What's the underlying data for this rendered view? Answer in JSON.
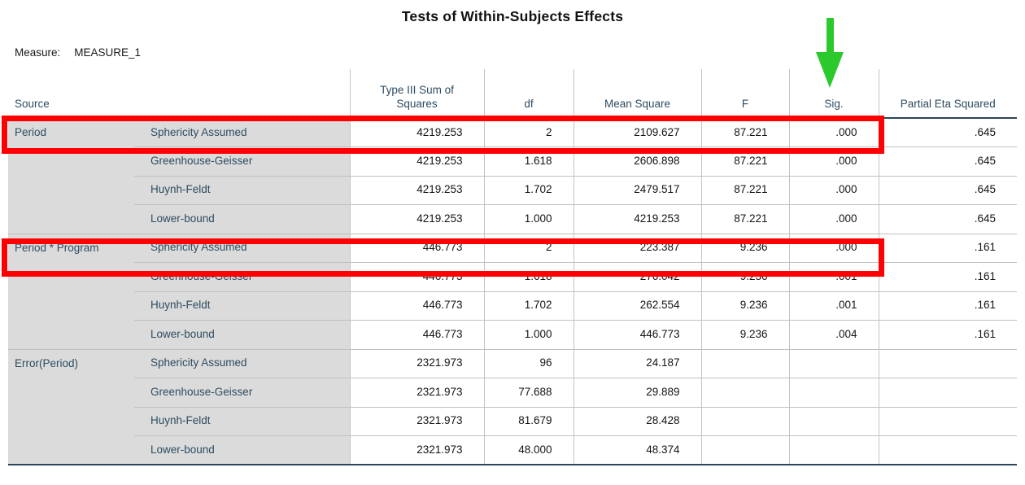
{
  "title": "Tests of Within-Subjects Effects",
  "measure": {
    "label": "Measure:",
    "value": "MEASURE_1"
  },
  "columns": {
    "source": "Source",
    "ss": "Type III Sum of Squares",
    "df": "df",
    "ms": "Mean Square",
    "f": "F",
    "sig": "Sig.",
    "eta": "Partial Eta Squared"
  },
  "table": {
    "blocks": [
      {
        "source": "Period",
        "rows": [
          {
            "correction": "Sphericity Assumed",
            "ss": "4219.253",
            "df": "2",
            "ms": "2109.627",
            "f": "87.221",
            "sig": ".000",
            "eta": ".645",
            "highlighted": true
          },
          {
            "correction": "Greenhouse-Geisser",
            "ss": "4219.253",
            "df": "1.618",
            "ms": "2606.898",
            "f": "87.221",
            "sig": ".000",
            "eta": ".645",
            "highlighted": false
          },
          {
            "correction": "Huynh-Feldt",
            "ss": "4219.253",
            "df": "1.702",
            "ms": "2479.517",
            "f": "87.221",
            "sig": ".000",
            "eta": ".645",
            "highlighted": false
          },
          {
            "correction": "Lower-bound",
            "ss": "4219.253",
            "df": "1.000",
            "ms": "4219.253",
            "f": "87.221",
            "sig": ".000",
            "eta": ".645",
            "highlighted": false
          }
        ]
      },
      {
        "source": "Period * Program",
        "rows": [
          {
            "correction": "Sphericity Assumed",
            "ss": "446.773",
            "df": "2",
            "ms": "223.387",
            "f": "9.236",
            "sig": ".000",
            "eta": ".161",
            "highlighted": true
          },
          {
            "correction": "Greenhouse-Geisser",
            "ss": "446.773",
            "df": "1.618",
            "ms": "276.042",
            "f": "9.236",
            "sig": ".001",
            "eta": ".161",
            "highlighted": false
          },
          {
            "correction": "Huynh-Feldt",
            "ss": "446.773",
            "df": "1.702",
            "ms": "262.554",
            "f": "9.236",
            "sig": ".001",
            "eta": ".161",
            "highlighted": false
          },
          {
            "correction": "Lower-bound",
            "ss": "446.773",
            "df": "1.000",
            "ms": "446.773",
            "f": "9.236",
            "sig": ".004",
            "eta": ".161",
            "highlighted": false
          }
        ]
      },
      {
        "source": "Error(Period)",
        "rows": [
          {
            "correction": "Sphericity Assumed",
            "ss": "2321.973",
            "df": "96",
            "ms": "24.187",
            "f": "",
            "sig": "",
            "eta": "",
            "highlighted": false
          },
          {
            "correction": "Greenhouse-Geisser",
            "ss": "2321.973",
            "df": "77.688",
            "ms": "29.889",
            "f": "",
            "sig": "",
            "eta": "",
            "highlighted": false
          },
          {
            "correction": "Huynh-Feldt",
            "ss": "2321.973",
            "df": "81.679",
            "ms": "28.428",
            "f": "",
            "sig": "",
            "eta": "",
            "highlighted": false
          },
          {
            "correction": "Lower-bound",
            "ss": "2321.973",
            "df": "48.000",
            "ms": "48.374",
            "f": "",
            "sig": "",
            "eta": "",
            "highlighted": false
          }
        ]
      }
    ]
  },
  "annotations": {
    "highlight_color": "#fe0000",
    "arrow_color": "#2bc92b",
    "arrow_points_to": "Sig."
  }
}
